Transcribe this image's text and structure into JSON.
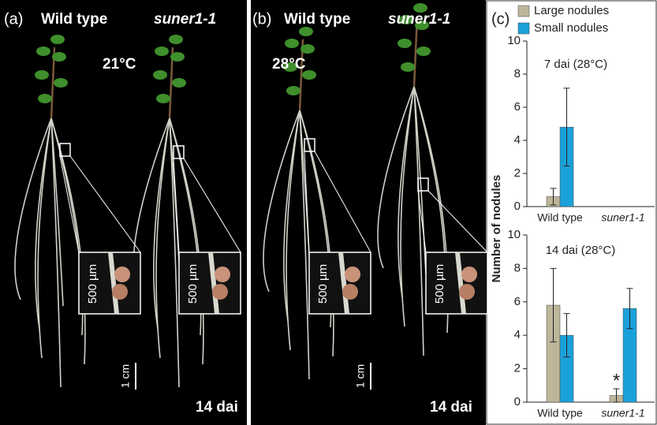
{
  "panels": [
    {
      "label": "(a)",
      "genotypes": [
        "Wild type",
        "suner1-1"
      ],
      "temperature": "21°C",
      "time": "14 dai",
      "scale_bar": "1 cm",
      "insets": [
        "500 µm",
        "500 µm"
      ]
    },
    {
      "label": "(b)",
      "genotypes": [
        "Wild type",
        "suner1-1"
      ],
      "temperature": "28°C",
      "time": "14 dai",
      "scale_bar": "1 cm",
      "insets": [
        "500 µm",
        "500 µm"
      ]
    }
  ],
  "chart_data": [
    {
      "type": "bar",
      "panel_label": "(c)",
      "title": "7 dai (28°C)",
      "ylabel": "Number of nodules",
      "categories": [
        "Wild type",
        "suner1-1"
      ],
      "series": [
        {
          "name": "Large nodules",
          "color": "#bdb69b",
          "values": [
            0.6,
            0
          ],
          "errors": [
            0.5,
            0
          ]
        },
        {
          "name": "Small nodules",
          "color": "#1ba1da",
          "values": [
            4.8,
            0
          ],
          "errors": [
            2.35,
            0
          ]
        }
      ],
      "ylim": [
        0,
        10
      ],
      "yticks": [
        0,
        2,
        4,
        6,
        8,
        10
      ]
    },
    {
      "type": "bar",
      "title": "14 dai (28°C)",
      "categories": [
        "Wild type",
        "suner1-1"
      ],
      "series": [
        {
          "color": "#bdb69b",
          "values": [
            5.8,
            0.4
          ],
          "errors": [
            2.2,
            0.4
          ]
        },
        {
          "color": "#1ba1da",
          "values": [
            4.0,
            5.6
          ],
          "errors": [
            1.3,
            1.2
          ]
        }
      ],
      "annotation": "*",
      "ylim": [
        0,
        10
      ],
      "yticks": [
        0,
        2,
        4,
        6,
        8,
        10
      ]
    }
  ]
}
